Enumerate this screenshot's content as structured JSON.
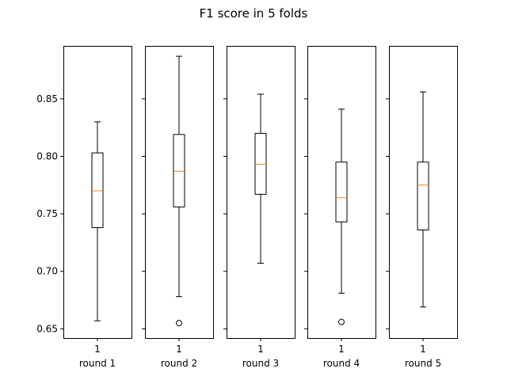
{
  "chart_data": {
    "type": "boxplot",
    "title": "F1 score in 5 folds",
    "shared_y": true,
    "ylim": [
      0.642,
      0.896
    ],
    "yticks": [
      0.65,
      0.7,
      0.75,
      0.8,
      0.85
    ],
    "ytick_labels": [
      "0.65",
      "0.70",
      "0.75",
      "0.80",
      "0.85"
    ],
    "median_color": "#ff7f0e",
    "box_color": "#000000",
    "panels": [
      {
        "xlabel": "round 1",
        "xtick_label": "1",
        "whisker_low": 0.657,
        "q1": 0.738,
        "median": 0.77,
        "q3": 0.803,
        "whisker_high": 0.83,
        "outliers": []
      },
      {
        "xlabel": "round 2",
        "xtick_label": "1",
        "whisker_low": 0.678,
        "q1": 0.756,
        "median": 0.787,
        "q3": 0.819,
        "whisker_high": 0.887,
        "outliers": [
          0.655
        ]
      },
      {
        "xlabel": "round 3",
        "xtick_label": "1",
        "whisker_low": 0.707,
        "q1": 0.767,
        "median": 0.793,
        "q3": 0.82,
        "whisker_high": 0.854,
        "outliers": []
      },
      {
        "xlabel": "round 4",
        "xtick_label": "1",
        "whisker_low": 0.681,
        "q1": 0.743,
        "median": 0.764,
        "q3": 0.795,
        "whisker_high": 0.841,
        "outliers": [
          0.656
        ]
      },
      {
        "xlabel": "round 5",
        "xtick_label": "1",
        "whisker_low": 0.669,
        "q1": 0.736,
        "median": 0.775,
        "q3": 0.795,
        "whisker_high": 0.856,
        "outliers": []
      }
    ]
  }
}
